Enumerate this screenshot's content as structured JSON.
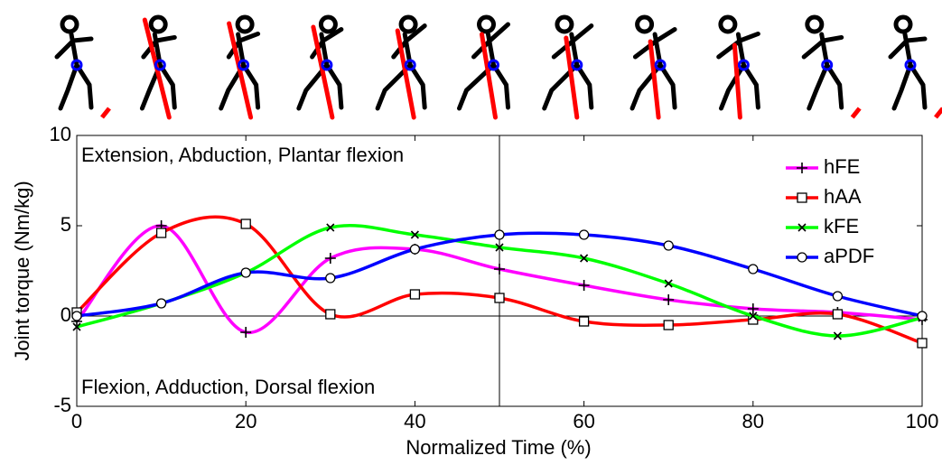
{
  "chart_data": {
    "type": "line",
    "xlabel": "Normalized Time (%)",
    "ylabel": "Joint torque (Nm/kg)",
    "annotations": [
      "Extension, Abduction, Plantar flexion",
      "Flexion, Adduction, Dorsal flexion"
    ],
    "x": [
      0,
      10,
      20,
      30,
      40,
      50,
      60,
      70,
      80,
      90,
      100
    ],
    "series": [
      {
        "name": "hFE",
        "color": "#ff00ff",
        "marker": "plus",
        "values": [
          -0.3,
          5.0,
          -0.9,
          3.2,
          3.7,
          2.6,
          1.7,
          0.9,
          0.4,
          0.2,
          -0.2
        ]
      },
      {
        "name": "hAA",
        "color": "#ff0000",
        "marker": "square",
        "values": [
          0.2,
          4.6,
          5.1,
          0.1,
          1.2,
          1.0,
          -0.3,
          -0.5,
          -0.2,
          0.1,
          -1.5
        ]
      },
      {
        "name": "kFE",
        "color": "#00ff00",
        "marker": "x",
        "values": [
          -0.6,
          0.7,
          2.4,
          4.9,
          4.5,
          3.8,
          3.2,
          1.8,
          0.0,
          -1.1,
          -0.1
        ]
      },
      {
        "name": "aPDF",
        "color": "#0000ff",
        "marker": "circle",
        "values": [
          0.0,
          0.7,
          2.4,
          2.1,
          3.7,
          4.5,
          4.5,
          3.9,
          2.6,
          1.1,
          0.0
        ]
      }
    ],
    "xlim": [
      0,
      100
    ],
    "xticks": [
      0,
      20,
      40,
      60,
      80,
      100
    ],
    "ylim": [
      -5,
      10
    ],
    "yticks": [
      -5,
      0,
      5,
      10
    ],
    "legend": "upper right"
  }
}
